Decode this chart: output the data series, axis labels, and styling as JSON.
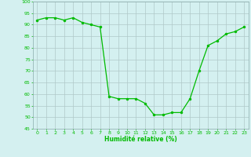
{
  "x": [
    0,
    1,
    2,
    3,
    4,
    5,
    6,
    7,
    8,
    9,
    10,
    11,
    12,
    13,
    14,
    15,
    16,
    17,
    18,
    19,
    20,
    21,
    22,
    23
  ],
  "y": [
    92,
    93,
    93,
    92,
    93,
    91,
    90,
    89,
    59,
    58,
    58,
    58,
    56,
    51,
    51,
    52,
    52,
    58,
    70,
    81,
    83,
    86,
    87,
    89
  ],
  "xlim": [
    -0.5,
    23.5
  ],
  "ylim": [
    45,
    100
  ],
  "yticks": [
    45,
    50,
    55,
    60,
    65,
    70,
    75,
    80,
    85,
    90,
    95,
    100
  ],
  "xticks": [
    0,
    1,
    2,
    3,
    4,
    5,
    6,
    7,
    8,
    9,
    10,
    11,
    12,
    13,
    14,
    15,
    16,
    17,
    18,
    19,
    20,
    21,
    22,
    23
  ],
  "xlabel": "Humidité relative (%)",
  "line_color": "#00bb00",
  "marker_color": "#00bb00",
  "bg_color": "#d4f0f0",
  "grid_color": "#b0c8c8",
  "tick_label_color": "#00bb00",
  "xlabel_color": "#00bb00",
  "figsize": [
    3.2,
    2.0
  ],
  "dpi": 100
}
